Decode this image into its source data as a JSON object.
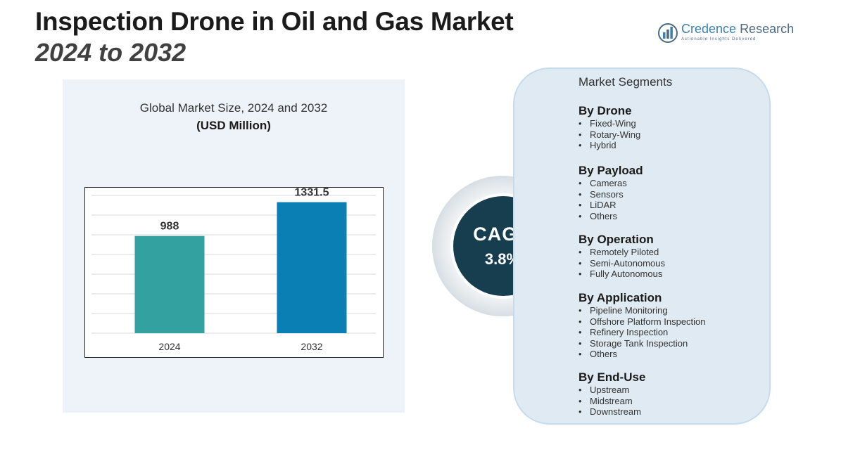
{
  "header": {
    "title_line1": "Inspection Drone in Oil and Gas Market",
    "title_line2": "2024 to 2032"
  },
  "logo": {
    "name_part1": "Credence",
    "name_part2": "Research",
    "tagline": "Actionable Insights Delivered",
    "icon": "bar-chart-logo-icon"
  },
  "chart_data": {
    "type": "bar",
    "title": "Global Market Size, 2024 and 2032",
    "unit": "(USD Million)",
    "categories": [
      "2024",
      "2032"
    ],
    "values": [
      988,
      1331.5
    ],
    "value_labels": [
      "988",
      "1331.5"
    ],
    "colors": [
      "#33a19f",
      "#0a7fb4"
    ],
    "ylim": [
      0,
      1400
    ],
    "grid": true
  },
  "cagr": {
    "label": "CAGR",
    "value": "3.8%",
    "color": "#173e4f"
  },
  "segments": {
    "header": "Market Segments",
    "groups": [
      {
        "title": "By Drone",
        "items": [
          "Fixed-Wing",
          "Rotary-Wing",
          "Hybrid"
        ]
      },
      {
        "title": "By Payload",
        "items": [
          "Cameras",
          "Sensors",
          "LiDAR",
          "Others"
        ]
      },
      {
        "title": "By Operation",
        "items": [
          "Remotely Piloted",
          "Semi-Autonomous",
          "Fully Autonomous"
        ]
      },
      {
        "title": "By Application",
        "items": [
          "Pipeline Monitoring",
          "Offshore Platform Inspection",
          "Refinery Inspection",
          "Storage Tank Inspection",
          "Others"
        ]
      },
      {
        "title": "By End-Use",
        "items": [
          "Upstream",
          "Midstream",
          "Downstream"
        ]
      }
    ]
  }
}
